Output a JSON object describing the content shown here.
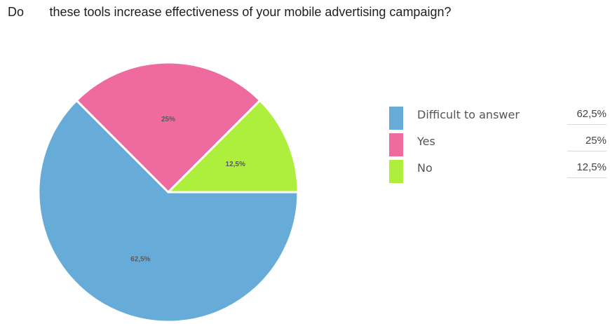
{
  "title": {
    "prefix": "Do",
    "main": "these tools increase effectiveness of your mobile advertising campaign?"
  },
  "chart_data": {
    "type": "pie",
    "title": "Do these tools increase effectiveness of your mobile advertising campaign?",
    "legend_position": "right",
    "slices": [
      {
        "label": "Difficult to answer",
        "value": 62.5,
        "display": "62,5%",
        "color": "#67acd9"
      },
      {
        "label": "Yes",
        "value": 25,
        "display": "25%",
        "color": "#ef6a9e"
      },
      {
        "label": "No",
        "value": 12.5,
        "display": "12,5%",
        "color": "#aeee3c"
      }
    ]
  }
}
